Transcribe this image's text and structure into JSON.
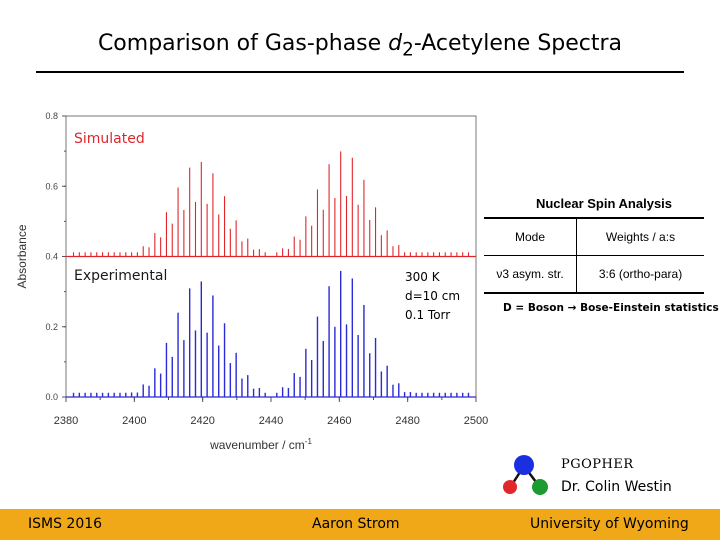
{
  "title": {
    "prefix": "Comparison of Gas-phase ",
    "italic": "d",
    "subscript": "2",
    "suffix": "-Acetylene Spectra"
  },
  "chart_data": {
    "type": "line",
    "xlabel": "wavenumber / cm",
    "xlabel_superscript": "-1",
    "ylabel": "Absorbance",
    "xlim": [
      2380,
      2500
    ],
    "ylim": [
      0.0,
      0.8
    ],
    "xticks": [
      "2380",
      "2400",
      "2420",
      "2440",
      "2460",
      "2480",
      "2500"
    ],
    "yticks": [
      "0.0",
      "0.2",
      "0.4",
      "0.6",
      "0.8"
    ],
    "grid": false,
    "band_center": 2440,
    "line_spacing": 1.7,
    "series": [
      {
        "name": "Simulated",
        "color": "#e0262b",
        "baseline": 0.4,
        "envelope_peaks": [
          {
            "x": 2419,
            "height": 0.27
          },
          {
            "x": 2461,
            "height": 0.3
          }
        ],
        "envelope_width": 11
      },
      {
        "name": "Experimental",
        "color": "#2a2ad6",
        "baseline": 0.0,
        "envelope_peaks": [
          {
            "x": 2419,
            "height": 0.33
          },
          {
            "x": 2461,
            "height": 0.36
          }
        ],
        "envelope_width": 11
      }
    ]
  },
  "labels": {
    "simulated": "Simulated",
    "experimental": "Experimental",
    "conditions": [
      "300 K",
      "d=10 cm",
      "0.1 Torr"
    ]
  },
  "spin_table": {
    "title": "Nuclear Spin Analysis",
    "headers": [
      "Mode",
      "Weights / a:s"
    ],
    "rows": [
      [
        "ν3 asym. str.",
        "3:6 (ortho-para)"
      ]
    ],
    "note": "D = Boson → Bose-Einstein statistics"
  },
  "credits": {
    "program": "PGOPHER",
    "author": "Dr. Colin Westin",
    "logo_colors": [
      "#1a2fe0",
      "#e0282a",
      "#1d9a32"
    ]
  },
  "footer": {
    "left": "ISMS 2016",
    "center": "Aaron Strom",
    "right": "University of Wyoming",
    "color": "#f0a818"
  },
  "colors": {
    "simulated_text": "#e0262b",
    "experimental_text": "#1a1a1a",
    "axis": "#555555"
  }
}
